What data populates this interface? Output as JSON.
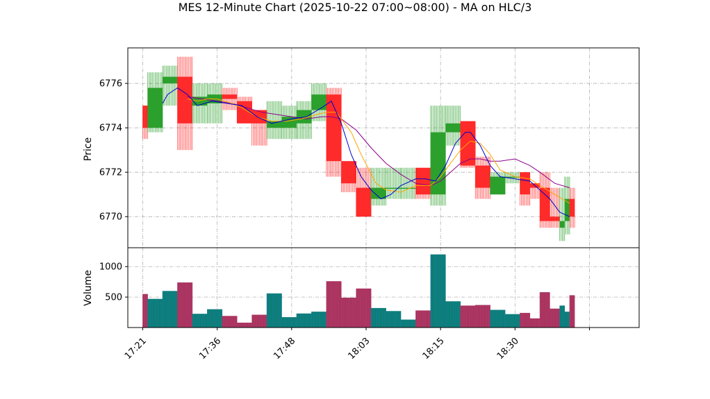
{
  "chart_data": {
    "type": "candlestick",
    "title": "MES 12-Minute Chart (2025-10-22 07:00~08:00) - MA on HLC/3",
    "price_panel": {
      "ylabel": "Price",
      "ylim": [
        6768.6,
        6777.6
      ],
      "yticks": [
        6770,
        6772,
        6774,
        6776
      ],
      "grid": true
    },
    "volume_panel": {
      "ylabel": "Volume",
      "ylim": [
        0,
        1310
      ],
      "yticks": [
        500,
        1000
      ],
      "grid": true
    },
    "x_axis": {
      "range": [
        -3,
        100
      ],
      "ticks": [
        {
          "pos": 0,
          "label": "17:21"
        },
        {
          "pos": 15,
          "label": "17:36"
        },
        {
          "pos": 30,
          "label": "17:48"
        },
        {
          "pos": 45,
          "label": "18:03"
        },
        {
          "pos": 60,
          "label": "18:15"
        },
        {
          "pos": 75,
          "label": "18:30"
        },
        {
          "pos": 90,
          "label": ""
        }
      ]
    },
    "colors": {
      "up": "#2ca02c",
      "down": "#ff2a2a",
      "ma_fast": "#0000cc",
      "ma_mid": "#ffa500",
      "ma_slow": "#8b008b",
      "vol_up": "#008060",
      "vol_down": "#a0305a"
    },
    "bars": [
      {
        "x0": 0,
        "x1": 1,
        "open": 6775.0,
        "high": 6775.0,
        "low": 6773.5,
        "close": 6774.0,
        "volume": 550
      },
      {
        "x0": 1,
        "x1": 4,
        "open": 6774.0,
        "high": 6776.5,
        "low": 6773.8,
        "close": 6775.8,
        "volume": 470
      },
      {
        "x0": 4,
        "x1": 7,
        "open": 6776.0,
        "high": 6776.8,
        "low": 6775.0,
        "close": 6776.3,
        "volume": 600
      },
      {
        "x0": 7,
        "x1": 10,
        "open": 6776.3,
        "high": 6777.2,
        "low": 6773.0,
        "close": 6774.2,
        "volume": 740
      },
      {
        "x0": 10,
        "x1": 13,
        "open": 6775.0,
        "high": 6776.0,
        "low": 6774.2,
        "close": 6775.4,
        "volume": 225
      },
      {
        "x0": 13,
        "x1": 16,
        "open": 6775.1,
        "high": 6776.0,
        "low": 6774.2,
        "close": 6775.5,
        "volume": 300
      },
      {
        "x0": 16,
        "x1": 19,
        "open": 6775.5,
        "high": 6775.8,
        "low": 6774.8,
        "close": 6775.3,
        "volume": 190
      },
      {
        "x0": 19,
        "x1": 22,
        "open": 6775.2,
        "high": 6775.4,
        "low": 6774.2,
        "close": 6774.2,
        "volume": 80
      },
      {
        "x0": 22,
        "x1": 25,
        "open": 6774.8,
        "high": 6774.8,
        "low": 6773.2,
        "close": 6774.2,
        "volume": 210
      },
      {
        "x0": 25,
        "x1": 28,
        "open": 6774.0,
        "high": 6775.2,
        "low": 6773.5,
        "close": 6774.3,
        "volume": 560
      },
      {
        "x0": 28,
        "x1": 31,
        "open": 6774.0,
        "high": 6775.0,
        "low": 6773.5,
        "close": 6774.5,
        "volume": 170
      },
      {
        "x0": 31,
        "x1": 34,
        "open": 6774.2,
        "high": 6775.2,
        "low": 6773.5,
        "close": 6774.8,
        "volume": 230
      },
      {
        "x0": 34,
        "x1": 37,
        "open": 6774.8,
        "high": 6776.0,
        "low": 6774.3,
        "close": 6775.5,
        "volume": 260
      },
      {
        "x0": 37,
        "x1": 40,
        "open": 6775.5,
        "high": 6775.8,
        "low": 6771.8,
        "close": 6772.5,
        "volume": 760
      },
      {
        "x0": 40,
        "x1": 43,
        "open": 6772.5,
        "high": 6772.5,
        "low": 6771.1,
        "close": 6771.5,
        "volume": 490
      },
      {
        "x0": 43,
        "x1": 46,
        "open": 6771.3,
        "high": 6772.2,
        "low": 6770.0,
        "close": 6770.0,
        "volume": 640
      },
      {
        "x0": 46,
        "x1": 49,
        "open": 6770.8,
        "high": 6772.2,
        "low": 6770.5,
        "close": 6771.3,
        "volume": 320
      },
      {
        "x0": 49,
        "x1": 52,
        "open": 6771.3,
        "high": 6772.2,
        "low": 6770.8,
        "close": 6771.3,
        "volume": 270
      },
      {
        "x0": 52,
        "x1": 55,
        "open": 6771.3,
        "high": 6772.2,
        "low": 6770.8,
        "close": 6771.3,
        "volume": 130
      },
      {
        "x0": 55,
        "x1": 58,
        "open": 6772.2,
        "high": 6772.2,
        "low": 6770.8,
        "close": 6771.0,
        "volume": 280
      },
      {
        "x0": 58,
        "x1": 61,
        "open": 6771.0,
        "high": 6775.0,
        "low": 6770.5,
        "close": 6773.8,
        "volume": 1200
      },
      {
        "x0": 61,
        "x1": 64,
        "open": 6773.8,
        "high": 6775.0,
        "low": 6773.2,
        "close": 6774.2,
        "volume": 430
      },
      {
        "x0": 64,
        "x1": 67,
        "open": 6774.3,
        "high": 6774.3,
        "low": 6772.2,
        "close": 6772.3,
        "volume": 360
      },
      {
        "x0": 67,
        "x1": 70,
        "open": 6772.3,
        "high": 6772.7,
        "low": 6770.8,
        "close": 6771.3,
        "volume": 370
      },
      {
        "x0": 70,
        "x1": 73,
        "open": 6771.0,
        "high": 6772.0,
        "low": 6771.0,
        "close": 6771.8,
        "volume": 290
      },
      {
        "x0": 73,
        "x1": 76,
        "open": 6771.8,
        "high": 6772.0,
        "low": 6771.5,
        "close": 6771.8,
        "volume": 220
      },
      {
        "x0": 76,
        "x1": 78,
        "open": 6772.0,
        "high": 6772.0,
        "low": 6770.5,
        "close": 6771.0,
        "volume": 240
      },
      {
        "x0": 78,
        "x1": 80,
        "open": 6771.5,
        "high": 6771.5,
        "low": 6770.8,
        "close": 6771.3,
        "volume": 150
      },
      {
        "x0": 80,
        "x1": 82,
        "open": 6771.3,
        "high": 6772.0,
        "low": 6769.5,
        "close": 6769.8,
        "volume": 580
      },
      {
        "x0": 82,
        "x1": 84,
        "open": 6770.0,
        "high": 6771.3,
        "low": 6769.5,
        "close": 6769.8,
        "volume": 310
      },
      {
        "x0": 84,
        "x1": 85,
        "open": 6769.5,
        "high": 6771.3,
        "low": 6768.9,
        "close": 6769.8,
        "volume": 360
      },
      {
        "x0": 85,
        "x1": 86,
        "open": 6769.8,
        "high": 6771.8,
        "low": 6769.2,
        "close": 6770.8,
        "volume": 260
      },
      {
        "x0": 86,
        "x1": 87,
        "open": 6770.8,
        "high": 6771.3,
        "low": 6769.5,
        "close": 6770.0,
        "volume": 530
      }
    ],
    "ma_fast": [
      [
        4,
        6775.1
      ],
      [
        5,
        6775.5
      ],
      [
        7,
        6775.8
      ],
      [
        9,
        6775.5
      ],
      [
        11,
        6775.0
      ],
      [
        14,
        6775.2
      ],
      [
        17,
        6775.1
      ],
      [
        20,
        6775.0
      ],
      [
        23,
        6774.5
      ],
      [
        26,
        6774.2
      ],
      [
        28,
        6774.3
      ],
      [
        30,
        6774.4
      ],
      [
        33,
        6774.5
      ],
      [
        36,
        6774.9
      ],
      [
        38,
        6775.2
      ],
      [
        40,
        6774.2
      ],
      [
        42,
        6772.8
      ],
      [
        44,
        6771.8
      ],
      [
        46,
        6771.2
      ],
      [
        48,
        6770.8
      ],
      [
        50,
        6771.0
      ],
      [
        52,
        6771.4
      ],
      [
        55,
        6771.7
      ],
      [
        57,
        6771.7
      ],
      [
        59,
        6771.6
      ],
      [
        61,
        6772.3
      ],
      [
        63,
        6773.3
      ],
      [
        65,
        6773.8
      ],
      [
        66,
        6773.8
      ],
      [
        68,
        6773.2
      ],
      [
        70,
        6772.3
      ],
      [
        72,
        6771.8
      ],
      [
        75,
        6771.7
      ],
      [
        78,
        6771.6
      ],
      [
        80,
        6771.2
      ],
      [
        82,
        6770.8
      ],
      [
        84,
        6770.2
      ],
      [
        86,
        6770.0
      ]
    ],
    "ma_mid": [
      [
        9,
        6775.3
      ],
      [
        11,
        6775.2
      ],
      [
        13,
        6775.3
      ],
      [
        15,
        6775.3
      ],
      [
        18,
        6775.1
      ],
      [
        20,
        6774.9
      ],
      [
        23,
        6774.5
      ],
      [
        26,
        6774.3
      ],
      [
        29,
        6774.3
      ],
      [
        32,
        6774.4
      ],
      [
        35,
        6774.6
      ],
      [
        37,
        6774.7
      ],
      [
        39,
        6774.7
      ],
      [
        42,
        6773.8
      ],
      [
        44,
        6772.8
      ],
      [
        47,
        6771.5
      ],
      [
        49,
        6771.2
      ],
      [
        52,
        6771.1
      ],
      [
        55,
        6771.4
      ],
      [
        58,
        6771.4
      ],
      [
        60,
        6771.8
      ],
      [
        62,
        6772.4
      ],
      [
        64,
        6773.0
      ],
      [
        66,
        6773.4
      ],
      [
        68,
        6773.3
      ],
      [
        70,
        6772.8
      ],
      [
        72,
        6772.1
      ],
      [
        75,
        6771.8
      ],
      [
        78,
        6771.7
      ],
      [
        80,
        6771.4
      ],
      [
        83,
        6771.0
      ],
      [
        86,
        6770.6
      ]
    ],
    "ma_slow": [
      [
        9,
        6775.4
      ],
      [
        12,
        6775.3
      ],
      [
        15,
        6775.2
      ],
      [
        18,
        6775.1
      ],
      [
        21,
        6774.9
      ],
      [
        24,
        6774.7
      ],
      [
        27,
        6774.6
      ],
      [
        30,
        6774.5
      ],
      [
        33,
        6774.4
      ],
      [
        36,
        6774.5
      ],
      [
        38,
        6774.5
      ],
      [
        40,
        6774.4
      ],
      [
        43,
        6773.9
      ],
      [
        46,
        6773.1
      ],
      [
        49,
        6772.4
      ],
      [
        52,
        6771.9
      ],
      [
        55,
        6771.5
      ],
      [
        58,
        6771.4
      ],
      [
        60,
        6771.6
      ],
      [
        62,
        6772.0
      ],
      [
        64,
        6772.4
      ],
      [
        66,
        6772.6
      ],
      [
        68,
        6772.6
      ],
      [
        70,
        6772.5
      ],
      [
        72,
        6772.5
      ],
      [
        75,
        6772.6
      ],
      [
        78,
        6772.3
      ],
      [
        80,
        6772.0
      ],
      [
        83,
        6771.5
      ],
      [
        86,
        6771.3
      ]
    ]
  }
}
